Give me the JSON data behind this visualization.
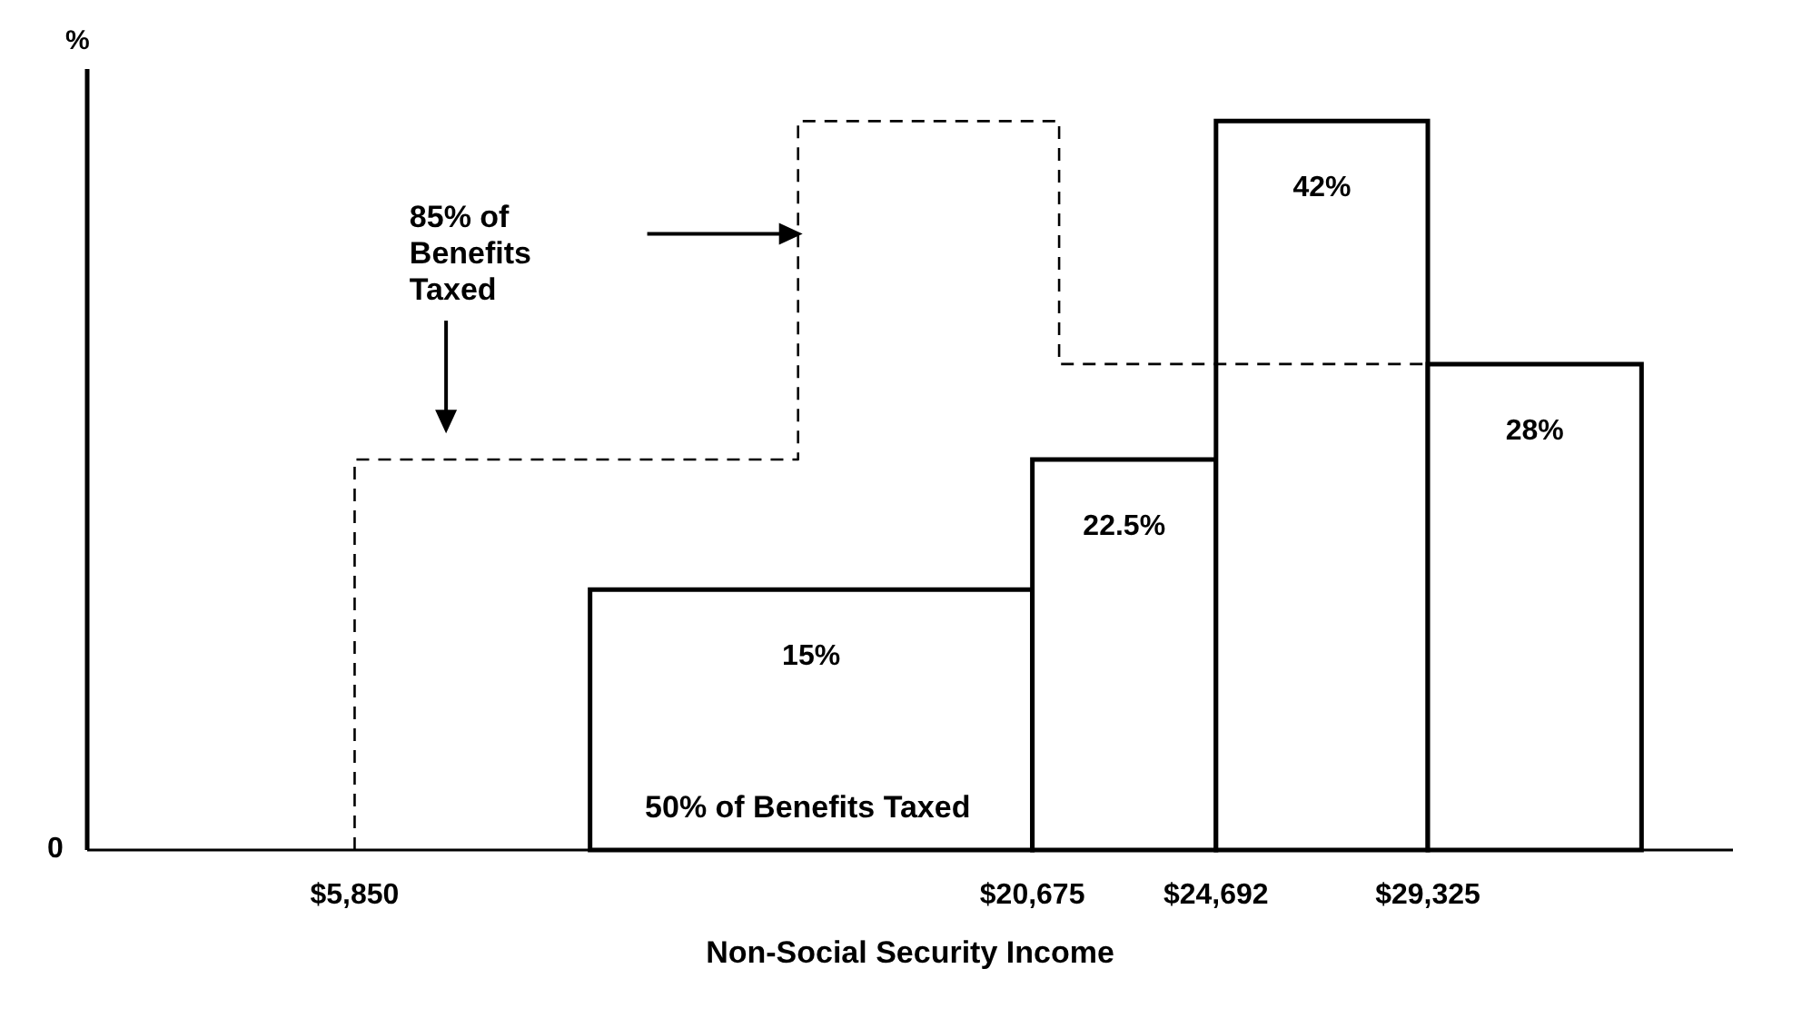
{
  "chart_data": {
    "type": "histogram",
    "xlabel": "Non-Social Security Income",
    "ylabel": "%",
    "bins": [
      11000,
      20675,
      24692,
      29325,
      34000
    ],
    "values": [
      15,
      22.5,
      42,
      28
    ],
    "value_labels": [
      "15%",
      "22.5%",
      "42%",
      "28%"
    ],
    "color": "#ffffff",
    "series": [
      {
        "type": "step",
        "x": [
          5850,
          5850,
          15550,
          21260,
          29325
        ],
        "values": [
          0,
          22.5,
          42,
          28,
          28
        ],
        "color": "#000000",
        "line_style": "dashed"
      }
    ],
    "xlim": [
      0,
      36000
    ],
    "xticks": [
      {
        "value": 5850,
        "label": "$5,850"
      },
      {
        "value": 20675,
        "label": "$20,675"
      },
      {
        "value": 24692,
        "label": "$24,692"
      },
      {
        "value": 29325,
        "label": "$29,325"
      }
    ],
    "ylim": [
      0,
      45
    ],
    "marker": "none",
    "annotations": [
      "85% of Benefits Taxed",
      "50% of Benefits Taxed",
      "0"
    ]
  }
}
